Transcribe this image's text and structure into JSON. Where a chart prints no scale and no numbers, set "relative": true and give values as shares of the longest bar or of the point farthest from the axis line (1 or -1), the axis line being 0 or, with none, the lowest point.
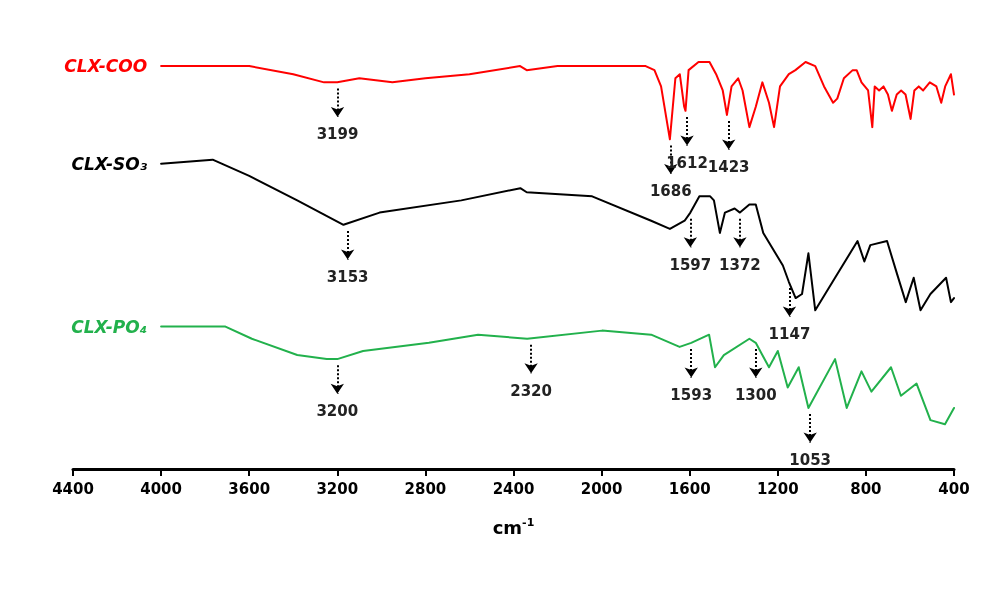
{
  "chart_data": {
    "type": "line",
    "relative": true,
    "xlabel": "cm$^{-1}$",
    "xlim": [
      4400,
      400
    ],
    "xticks": [
      4400,
      4000,
      3600,
      3200,
      2800,
      2400,
      2000,
      1600,
      1200,
      800,
      400
    ],
    "grid": false,
    "legend": false,
    "marker": "none",
    "line_style": "solid",
    "series": [
      {
        "name": "CLX-COO",
        "color": "#ff0000",
        "x": [
          4000,
          3600,
          3400,
          3260,
          3200,
          3100,
          2950,
          2800,
          2600,
          2370,
          2340,
          2200,
          2000,
          1800,
          1760,
          1730,
          1690,
          1665,
          1645,
          1625,
          1619,
          1605,
          1560,
          1510,
          1480,
          1450,
          1431,
          1410,
          1380,
          1360,
          1329,
          1300,
          1270,
          1240,
          1217,
          1190,
          1150,
          1120,
          1074,
          1030,
          990,
          949,
          930,
          900,
          860,
          842,
          820,
          790,
          771,
          760,
          740,
          720,
          700,
          682,
          660,
          640,
          620,
          597,
          580,
          560,
          540,
          510,
          480,
          458,
          440,
          414,
          400
        ],
        "values": [
          0.99,
          0.99,
          0.97,
          0.95,
          0.95,
          0.96,
          0.95,
          0.96,
          0.97,
          0.99,
          0.98,
          0.99,
          0.99,
          0.99,
          0.98,
          0.94,
          0.81,
          0.96,
          0.97,
          0.89,
          0.88,
          0.98,
          1.0,
          1.0,
          0.97,
          0.93,
          0.87,
          0.94,
          0.96,
          0.93,
          0.84,
          0.89,
          0.95,
          0.9,
          0.84,
          0.94,
          0.97,
          0.98,
          1.0,
          0.99,
          0.94,
          0.9,
          0.91,
          0.96,
          0.98,
          0.98,
          0.95,
          0.93,
          0.84,
          0.94,
          0.93,
          0.94,
          0.92,
          0.88,
          0.92,
          0.93,
          0.92,
          0.86,
          0.93,
          0.94,
          0.93,
          0.95,
          0.94,
          0.9,
          0.94,
          0.97,
          0.92
        ]
      },
      {
        "name": "CLX-SO₃",
        "color": "#000000",
        "x": [
          4000,
          3766,
          3600,
          3382,
          3172,
          3008,
          2637,
          2369,
          2340,
          2043,
          1775,
          1690,
          1623,
          1597,
          1556,
          1507,
          1490,
          1463,
          1440,
          1396,
          1372,
          1329,
          1300,
          1266,
          1177,
          1150,
          1119,
          1090,
          1061,
          1030,
          940,
          838,
          807,
          780,
          704,
          659,
          619,
          583,
          552,
          507,
          436,
          414,
          400
        ],
        "values": [
          0.75,
          0.76,
          0.72,
          0.66,
          0.6,
          0.63,
          0.66,
          0.69,
          0.68,
          0.67,
          0.61,
          0.59,
          0.61,
          0.63,
          0.67,
          0.67,
          0.66,
          0.58,
          0.63,
          0.64,
          0.63,
          0.65,
          0.65,
          0.58,
          0.5,
          0.46,
          0.42,
          0.43,
          0.53,
          0.39,
          0.47,
          0.56,
          0.51,
          0.55,
          0.56,
          0.48,
          0.41,
          0.47,
          0.39,
          0.43,
          0.47,
          0.41,
          0.42
        ]
      },
      {
        "name": "CLX-PO₄",
        "color": "#22b14c",
        "x": [
          4000,
          3708,
          3588,
          3382,
          3248,
          3200,
          3083,
          2784,
          2561,
          2338,
          1998,
          1775,
          1646,
          1593,
          1512,
          1485,
          1445,
          1329,
          1300,
          1240,
          1200,
          1155,
          1105,
          1061,
          940,
          887,
          820,
          775,
          686,
          641,
          570,
          507,
          441,
          400
        ],
        "values": [
          0.35,
          0.35,
          0.32,
          0.28,
          0.27,
          0.27,
          0.29,
          0.31,
          0.33,
          0.32,
          0.34,
          0.33,
          0.3,
          0.31,
          0.33,
          0.25,
          0.28,
          0.32,
          0.31,
          0.25,
          0.29,
          0.2,
          0.25,
          0.15,
          0.27,
          0.15,
          0.24,
          0.19,
          0.25,
          0.18,
          0.21,
          0.12,
          0.11,
          0.15
        ]
      }
    ],
    "annotations": [
      {
        "text": "3199",
        "x": 3199,
        "y": 0.95
      },
      {
        "text": "1686",
        "x": 1686,
        "y": 0.81
      },
      {
        "text": "1612",
        "x": 1612,
        "y": 0.88
      },
      {
        "text": "1423",
        "x": 1423,
        "y": 0.87
      },
      {
        "text": "3153",
        "x": 3153,
        "y": 0.6
      },
      {
        "text": "1597",
        "x": 1597,
        "y": 0.63
      },
      {
        "text": "1372",
        "x": 1372,
        "y": 0.63
      },
      {
        "text": "1147",
        "x": 1147,
        "y": 0.46
      },
      {
        "text": "3200",
        "x": 3200,
        "y": 0.27
      },
      {
        "text": "2320",
        "x": 2320,
        "y": 0.32
      },
      {
        "text": "1593",
        "x": 1593,
        "y": 0.31
      },
      {
        "text": "1300",
        "x": 1300,
        "y": 0.31
      },
      {
        "text": "1053",
        "x": 1053,
        "y": 0.15
      }
    ]
  }
}
